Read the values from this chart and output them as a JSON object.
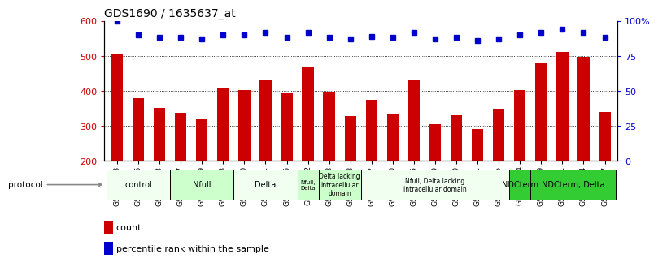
{
  "title": "GDS1690 / 1635637_at",
  "samples": [
    "GSM53393",
    "GSM53396",
    "GSM53403",
    "GSM53397",
    "GSM53399",
    "GSM53408",
    "GSM53390",
    "GSM53401",
    "GSM53406",
    "GSM53402",
    "GSM53388",
    "GSM53398",
    "GSM53392",
    "GSM53400",
    "GSM53405",
    "GSM53409",
    "GSM53410",
    "GSM53411",
    "GSM53395",
    "GSM53404",
    "GSM53389",
    "GSM53391",
    "GSM53394",
    "GSM53407"
  ],
  "counts": [
    504,
    378,
    352,
    337,
    320,
    408,
    403,
    430,
    393,
    470,
    397,
    329,
    374,
    333,
    430,
    306,
    330,
    290,
    348,
    402,
    479,
    512,
    497,
    340
  ],
  "percentiles": [
    100,
    90,
    88,
    88,
    87,
    90,
    90,
    92,
    88,
    92,
    88,
    87,
    89,
    88,
    92,
    87,
    88,
    86,
    87,
    90,
    92,
    94,
    92,
    88
  ],
  "bar_color": "#cc0000",
  "dot_color": "#0000cc",
  "ymin": 200,
  "ymax": 600,
  "yticks": [
    200,
    300,
    400,
    500,
    600
  ],
  "y2min": 0,
  "y2max": 100,
  "y2ticks": [
    0,
    25,
    50,
    75,
    100
  ],
  "grid_values": [
    300,
    400,
    500
  ],
  "protocol_groups": [
    {
      "label": "control",
      "start": 0,
      "end": 3,
      "color": "#f0fff0"
    },
    {
      "label": "Nfull",
      "start": 3,
      "end": 6,
      "color": "#ccffcc"
    },
    {
      "label": "Delta",
      "start": 6,
      "end": 9,
      "color": "#f0fff0"
    },
    {
      "label": "Nfull,\nDelta",
      "start": 9,
      "end": 10,
      "color": "#ccffcc"
    },
    {
      "label": "Delta lacking\nintracellular\ndomain",
      "start": 10,
      "end": 12,
      "color": "#ccffcc"
    },
    {
      "label": "Nfull, Delta lacking\nintracellular domain",
      "start": 12,
      "end": 19,
      "color": "#f0fff0"
    },
    {
      "label": "NDCterm",
      "start": 19,
      "end": 20,
      "color": "#33cc33"
    },
    {
      "label": "NDCterm, Delta",
      "start": 20,
      "end": 24,
      "color": "#33cc33"
    }
  ],
  "xlabel_fontsize": 6.5,
  "title_fontsize": 10,
  "tick_fontsize": 8,
  "bar_width": 0.55
}
